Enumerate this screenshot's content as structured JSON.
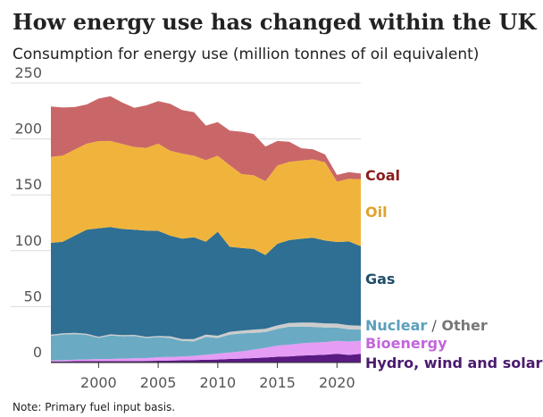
{
  "title": "How energy use has changed within the UK",
  "subtitle": "Consumption for energy use (million tonnes of oil equivalent)",
  "note": "Note: Primary fuel input basis.",
  "chart_data": {
    "type": "area",
    "stacked": true,
    "x": [
      1996,
      1997,
      1998,
      1999,
      2000,
      2001,
      2002,
      2003,
      2004,
      2005,
      2006,
      2007,
      2008,
      2009,
      2010,
      2011,
      2012,
      2013,
      2014,
      2015,
      2016,
      2017,
      2018,
      2019,
      2020,
      2021,
      2022
    ],
    "xticks": [
      2000,
      2005,
      2010,
      2015,
      2020
    ],
    "yticks": [
      0,
      50,
      100,
      150,
      200,
      250
    ],
    "ylim": [
      0,
      250
    ],
    "series": [
      {
        "name": "Hydro, wind and solar",
        "color": "#5a1a82",
        "values": [
          1.0,
          1.0,
          1.2,
          1.2,
          1.3,
          1.2,
          1.3,
          1.3,
          1.4,
          1.6,
          1.8,
          2.0,
          2.2,
          2.5,
          2.7,
          3.2,
          3.5,
          4.0,
          4.5,
          5.2,
          5.5,
          6.2,
          6.6,
          7.0,
          7.8,
          6.8,
          7.8
        ]
      },
      {
        "name": "Bioenergy",
        "color": "#e59cf5",
        "values": [
          1.0,
          1.1,
          1.3,
          1.6,
          1.8,
          2.0,
          2.2,
          2.5,
          2.6,
          3.2,
          3.2,
          3.4,
          3.8,
          4.5,
          5.3,
          5.8,
          6.5,
          7.5,
          8.7,
          10.0,
          10.5,
          11.0,
          11.3,
          11.3,
          11.5,
          12.0,
          11.7
        ]
      },
      {
        "name": "Nuclear",
        "color": "#6aabc3",
        "values": [
          22,
          23,
          23,
          22,
          19,
          21,
          20,
          20,
          18,
          18,
          17,
          14,
          13,
          16,
          14,
          16,
          16,
          15,
          14,
          15,
          16,
          15,
          14,
          13,
          12,
          11,
          10
        ]
      },
      {
        "name": "Other",
        "color": "#cccccc",
        "values": [
          1.0,
          1.0,
          1.0,
          1.0,
          1.0,
          1.0,
          1.0,
          1.0,
          1.0,
          1.0,
          1.5,
          1.5,
          2.0,
          2.0,
          2.0,
          2.5,
          2.5,
          3.0,
          3.0,
          3.0,
          3.5,
          3.5,
          3.8,
          3.8,
          3.5,
          3.5,
          3.5
        ]
      },
      {
        "name": "Gas",
        "color": "#2e6f93",
        "values": [
          82,
          82,
          87,
          93,
          97,
          96,
          95,
          94,
          95,
          94,
          90,
          90,
          91,
          83,
          93,
          76,
          74,
          72,
          66,
          73,
          74,
          75,
          76,
          74,
          73,
          75,
          71
        ]
      },
      {
        "name": "Oil",
        "color": "#f0b43c",
        "values": [
          77,
          77,
          77,
          77,
          78,
          77,
          76,
          74,
          74,
          78,
          76,
          76,
          73,
          73,
          68,
          73,
          66,
          66,
          66,
          70,
          70,
          70,
          70,
          70,
          54,
          56,
          60
        ]
      },
      {
        "name": "Coal",
        "color": "#c96768",
        "values": [
          45,
          43,
          38,
          35,
          38,
          40,
          37,
          35,
          38,
          38,
          42,
          39,
          39,
          31,
          30,
          31,
          38,
          37,
          31,
          22,
          18,
          11,
          9,
          7,
          6,
          6,
          5
        ]
      }
    ],
    "labels": [
      {
        "text": "Coal",
        "color": "#8b1c1c"
      },
      {
        "text": "Oil",
        "color": "#e1a22c"
      },
      {
        "text": "Gas",
        "color": "#1f4e6a"
      },
      {
        "text": "Nuclear",
        "color": "#5b9fbd"
      },
      {
        "text": "/",
        "color": "#555555"
      },
      {
        "text": "Other",
        "color": "#777777"
      },
      {
        "text": "Bioenergy",
        "color": "#c266dc"
      },
      {
        "text": "Hydro, wind and solar",
        "color": "#4b1a6e"
      }
    ]
  }
}
